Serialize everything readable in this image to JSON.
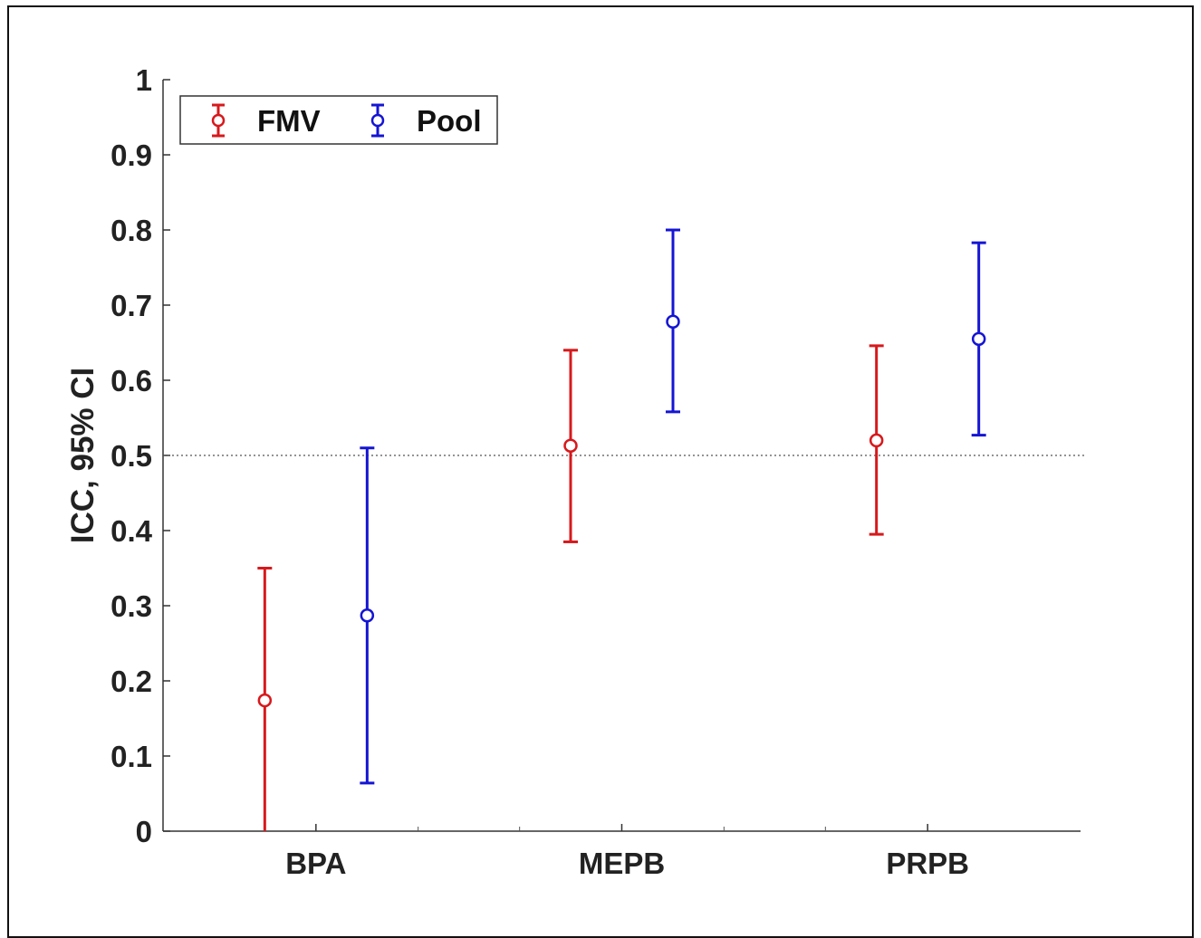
{
  "chart_data": {
    "type": "errorbar",
    "title": "",
    "xlabel": "",
    "ylabel": "ICC, 95% CI",
    "ylim": [
      0,
      1
    ],
    "yticks": [
      "0",
      "0.1",
      "0.2",
      "0.3",
      "0.4",
      "0.5",
      "0.6",
      "0.7",
      "0.8",
      "0.9",
      "1"
    ],
    "categories": [
      "BPA",
      "MEPB",
      "PRPB"
    ],
    "reference_line": {
      "y": 0.5,
      "style": "dotted"
    },
    "legend": {
      "position": "top-left",
      "orientation": "horizontal"
    },
    "grid": false,
    "series": [
      {
        "name": "FMV",
        "color": "#d7191c",
        "marker": "circle",
        "points": [
          {
            "category": "BPA",
            "value": 0.174,
            "lower": 0.0,
            "upper": 0.35
          },
          {
            "category": "MEPB",
            "value": 0.513,
            "lower": 0.385,
            "upper": 0.64
          },
          {
            "category": "PRPB",
            "value": 0.52,
            "lower": 0.395,
            "upper": 0.646
          }
        ]
      },
      {
        "name": "Pool",
        "color": "#1515d4",
        "marker": "circle",
        "points": [
          {
            "category": "BPA",
            "value": 0.287,
            "lower": 0.064,
            "upper": 0.51
          },
          {
            "category": "MEPB",
            "value": 0.678,
            "lower": 0.558,
            "upper": 0.8
          },
          {
            "category": "PRPB",
            "value": 0.655,
            "lower": 0.527,
            "upper": 0.783
          }
        ]
      }
    ]
  }
}
